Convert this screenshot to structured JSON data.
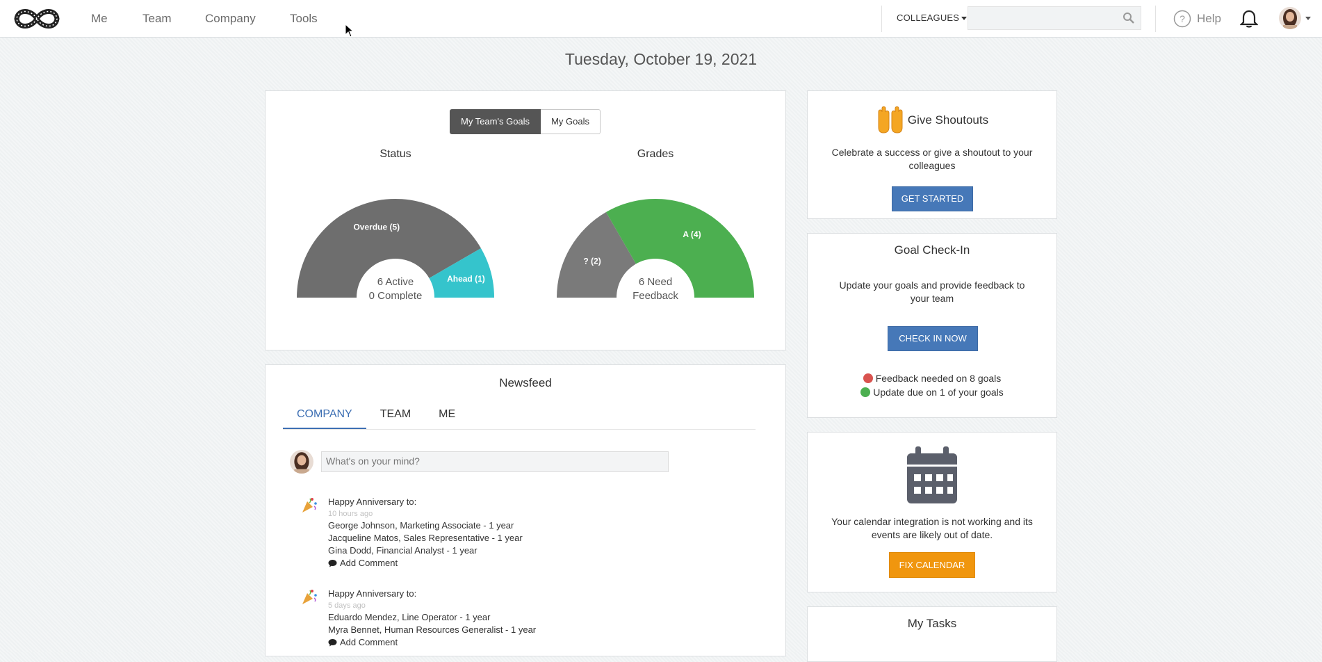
{
  "nav": {
    "items": [
      "Me",
      "Team",
      "Company",
      "Tools"
    ],
    "colleagues_label": "COLLEAGUES",
    "search_placeholder": "",
    "help_label": "Help"
  },
  "date": "Tuesday, October 19, 2021",
  "goals": {
    "toggle_active": "My Team's Goals",
    "toggle_inactive": "My Goals",
    "status": {
      "title": "Status",
      "center_line1": "6 Active",
      "center_line2": "0 Complete",
      "segments": [
        {
          "label": "Overdue (5)",
          "value": 5,
          "color": "#6e6e6e"
        },
        {
          "label": "Ahead (1)",
          "value": 1,
          "color": "#35c4cc"
        }
      ]
    },
    "grades": {
      "title": "Grades",
      "center_line1": "6 Need",
      "center_line2": "Feedback",
      "segments": [
        {
          "label": "? (2)",
          "value": 2,
          "color": "#7a7a7a"
        },
        {
          "label": "A (4)",
          "value": 4,
          "color": "#4caf50"
        }
      ]
    }
  },
  "newsfeed": {
    "title": "Newsfeed",
    "tabs": [
      "COMPANY",
      "TEAM",
      "ME"
    ],
    "post_placeholder": "What's on your mind?",
    "items": [
      {
        "heading": "Happy Anniversary to:",
        "time": "10 hours ago",
        "lines": [
          "George Johnson, Marketing Associate - 1 year",
          "Jacqueline Matos, Sales Representative - 1 year",
          "Gina Dodd, Financial Analyst - 1 year"
        ],
        "comment_label": "Add Comment"
      },
      {
        "heading": "Happy Anniversary to:",
        "time": "5 days ago",
        "lines": [
          "Eduardo Mendez, Line Operator - 1 year",
          "Myra Bennet, Human Resources Generalist - 1 year"
        ],
        "comment_label": "Add Comment"
      }
    ]
  },
  "shoutouts": {
    "title": "Give Shoutouts",
    "text": "Celebrate a success or give a shoutout to your colleagues",
    "button": "GET STARTED"
  },
  "checkin": {
    "title": "Goal Check-In",
    "text": "Update your goals and provide feedback to your team",
    "button": "CHECK IN NOW",
    "status": [
      {
        "text": "Feedback needed on 8 goals",
        "color": "#d9534f"
      },
      {
        "text": "Update due on 1 of your goals",
        "color": "#4caf50"
      }
    ]
  },
  "calendar": {
    "text": "Your calendar integration is not working and its events are likely out of date.",
    "button": "FIX CALENDAR"
  },
  "tasks": {
    "title": "My Tasks"
  },
  "colors": {
    "accent_blue": "#4678b8",
    "accent_orange": "#f0960e",
    "tab_active": "#3d6fb3"
  }
}
